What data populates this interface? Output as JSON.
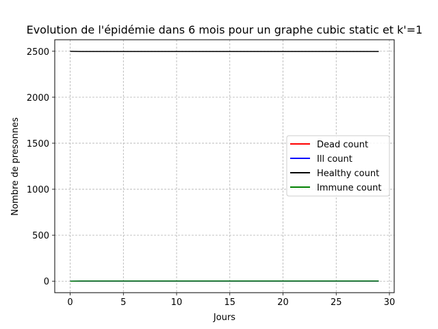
{
  "chart_data": {
    "type": "line",
    "title": "Evolution de l'épidémie dans 6 mois pour un graphe cubic static et k'=1",
    "xlabel": "Jours",
    "ylabel": "Nombre de presonnes",
    "xlim": [
      -1.45,
      30.45
    ],
    "ylim": [
      -125,
      2625
    ],
    "xticks": [
      0,
      5,
      10,
      15,
      20,
      25,
      30
    ],
    "yticks": [
      0,
      500,
      1000,
      1500,
      2000,
      2500
    ],
    "grid": true,
    "legend_position": "center-right",
    "x": [
      0,
      1,
      2,
      3,
      4,
      5,
      6,
      7,
      8,
      9,
      10,
      11,
      12,
      13,
      14,
      15,
      16,
      17,
      18,
      19,
      20,
      21,
      22,
      23,
      24,
      25,
      26,
      27,
      28,
      29
    ],
    "series": [
      {
        "name": "Dead count",
        "color": "#ff0000",
        "values": [
          0,
          0,
          0,
          0,
          0,
          0,
          0,
          0,
          0,
          0,
          0,
          0,
          0,
          0,
          0,
          0,
          0,
          0,
          0,
          0,
          0,
          0,
          0,
          0,
          0,
          0,
          0,
          0,
          0,
          0
        ]
      },
      {
        "name": "Ill count",
        "color": "#0000ff",
        "values": [
          1,
          1,
          1,
          1,
          1,
          1,
          1,
          1,
          1,
          1,
          1,
          1,
          1,
          1,
          1,
          1,
          1,
          1,
          1,
          1,
          1,
          1,
          1,
          1,
          1,
          1,
          1,
          1,
          1,
          1
        ]
      },
      {
        "name": "Healthy count",
        "color": "#000000",
        "values": [
          2499,
          2497,
          2497,
          2497,
          2497,
          2497,
          2497,
          2497,
          2497,
          2497,
          2497,
          2497,
          2497,
          2497,
          2497,
          2497,
          2497,
          2497,
          2497,
          2497,
          2497,
          2497,
          2497,
          2497,
          2497,
          2497,
          2497,
          2497,
          2497,
          2497
        ]
      },
      {
        "name": "Immune count",
        "color": "#008000",
        "values": [
          0,
          2,
          2,
          2,
          2,
          2,
          2,
          2,
          2,
          2,
          2,
          2,
          2,
          2,
          2,
          2,
          2,
          2,
          2,
          2,
          2,
          2,
          2,
          2,
          2,
          2,
          2,
          2,
          2,
          2
        ]
      }
    ]
  }
}
